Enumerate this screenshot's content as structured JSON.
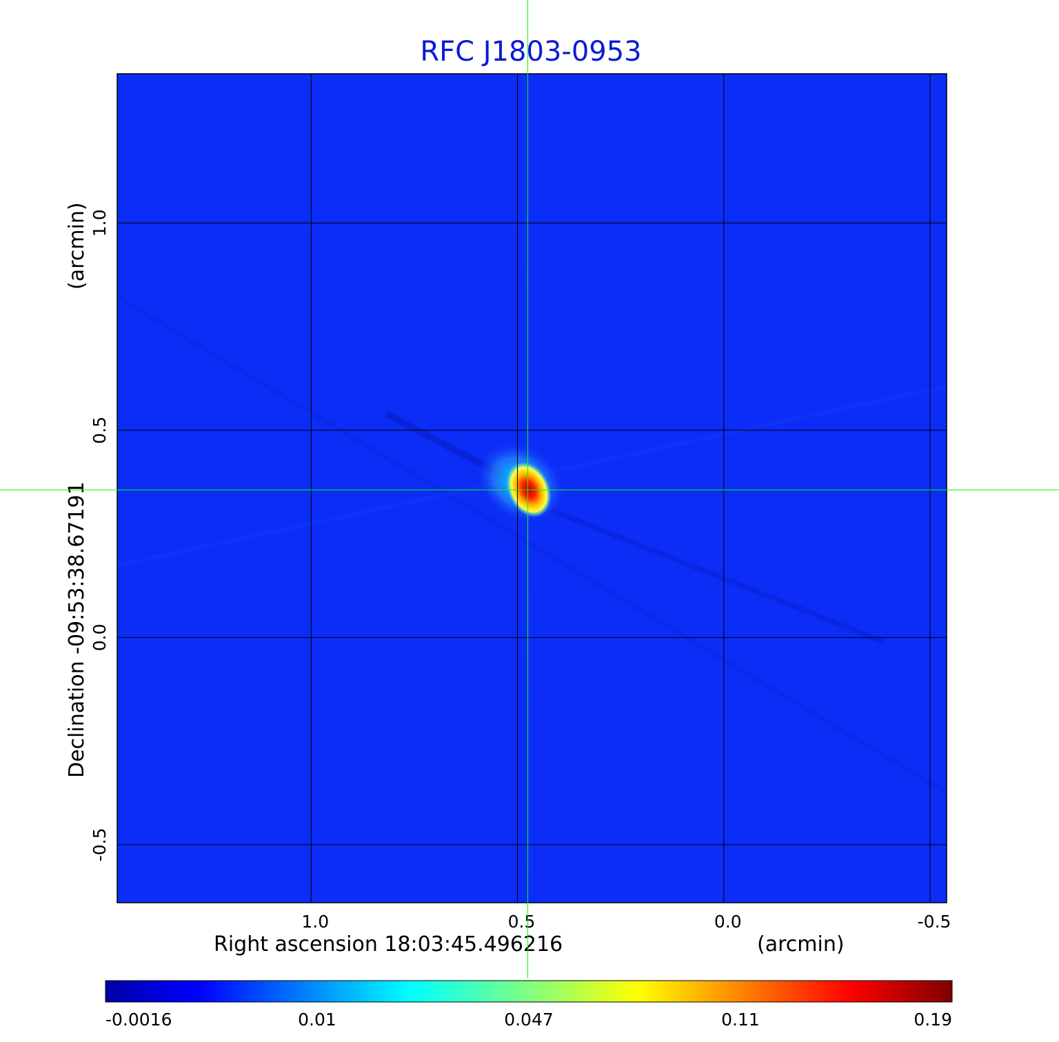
{
  "chart_data": {
    "type": "heatmap",
    "title": "RFC J1803-0953",
    "xlabel": "Right ascension  18:03:45.496216",
    "xunit": "(arcmin)",
    "ylabel": "Declination  -09:53:38.67191",
    "yunit": "(arcmin)",
    "xlim": [
      1.47,
      -0.54
    ],
    "ylim": [
      -0.64,
      1.36
    ],
    "x_ticks": [
      1.0,
      0.5,
      0.0,
      -0.5
    ],
    "x_tick_labels": [
      "1.0",
      "0.5",
      "0.0",
      "-0.5"
    ],
    "y_ticks": [
      -0.5,
      0.0,
      0.5,
      1.0
    ],
    "y_tick_labels": [
      "-0.5",
      "0.0",
      "0.5",
      "1.0"
    ],
    "grid": true,
    "source_peak": {
      "x": 0.48,
      "y": 0.36,
      "value": 0.19
    },
    "crosshair": {
      "x": 0.475,
      "y": 0.356
    },
    "colormap": "jet",
    "colorbar": {
      "placement": "bottom",
      "ticks": [
        -0.0016,
        0.01,
        0.047,
        0.11,
        0.19
      ],
      "tick_labels": [
        "-0.0016",
        "0.01",
        "0.047",
        "0.11",
        "0.19"
      ]
    },
    "colors": {
      "title": "#0a1ad6",
      "background_map": "#0b2df5",
      "grid": "#000000",
      "crosshair": "#00ff00"
    }
  }
}
